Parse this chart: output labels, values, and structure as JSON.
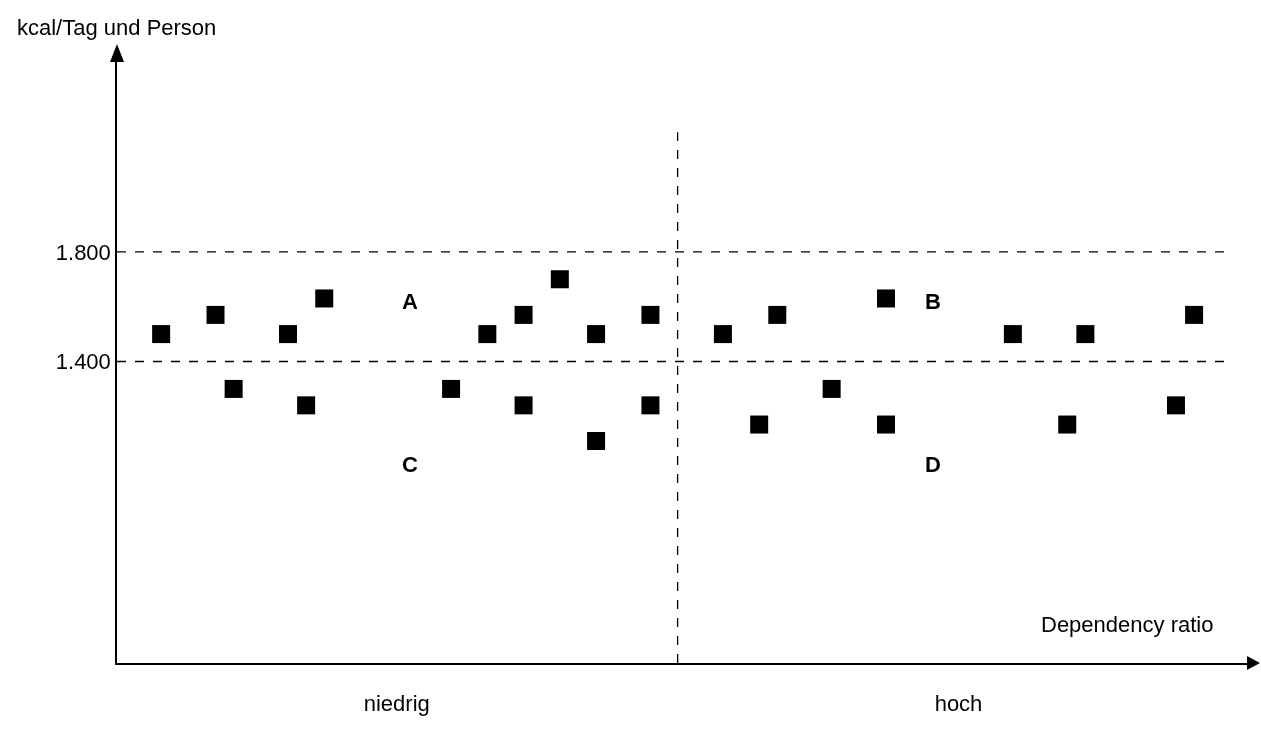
{
  "chart_data": {
    "type": "scatter",
    "xlabel": "Dependency ratio",
    "ylabel": "kcal/Tag und Person",
    "categories": [
      null,
      null,
      null,
      null,
      null,
      null,
      null,
      null,
      null,
      null,
      null,
      null,
      null,
      "niedrig",
      null,
      null,
      null,
      null,
      null,
      null,
      null,
      null,
      null,
      null,
      null,
      null,
      null,
      null,
      null,
      null,
      null,
      null,
      null,
      null,
      null,
      null,
      null,
      null,
      null,
      null,
      null,
      null,
      null,
      null,
      "hoch",
      null,
      null,
      null,
      null,
      null,
      null,
      null,
      null,
      null,
      null,
      null,
      null,
      null
    ],
    "series": [
      {
        "color": "#000000",
        "values": [
          1500,
          null,
          null,
          1570,
          1300,
          null,
          null,
          1500,
          1240,
          1630,
          null,
          null,
          null,
          null,
          null,
          null,
          1300,
          null,
          1500,
          null,
          1570,
          null,
          1700,
          null,
          1500,
          null,
          null,
          1570,
          null,
          null,
          null,
          1500,
          null,
          1170,
          1570,
          null,
          null,
          1300,
          null,
          null,
          1630,
          null,
          null,
          null,
          null,
          null,
          null,
          1500,
          null,
          null,
          1170,
          1500,
          null,
          null,
          null,
          null,
          1240,
          1570
        ]
      },
      {
        "color": "#000000",
        "values": [
          null,
          null,
          null,
          null,
          null,
          null,
          null,
          null,
          null,
          null,
          null,
          null,
          null,
          null,
          null,
          null,
          null,
          null,
          null,
          null,
          1240,
          null,
          null,
          null,
          1110,
          null,
          null,
          1240,
          null,
          null,
          null,
          null,
          null,
          null,
          null,
          null,
          null,
          null,
          null,
          null,
          1170,
          null,
          null,
          null,
          null,
          null,
          null,
          null,
          null,
          null,
          null,
          null,
          null,
          null,
          null,
          null,
          null,
          null
        ]
      }
    ],
    "marker": "square",
    "grid": false,
    "legend": false,
    "ylim": [
      300,
      2500
    ],
    "yticks": [
      {
        "value": 1400,
        "label": "1.400"
      },
      {
        "value": 1800,
        "label": "1.800"
      }
    ],
    "ref_lines": [
      {
        "axis": "y",
        "value": 1400,
        "line_style": "dashed",
        "color": "#000000"
      },
      {
        "axis": "y",
        "value": 1800,
        "line_style": "dashed",
        "color": "#000000"
      }
    ],
    "annotations": [
      "A",
      "B",
      "C",
      "D"
    ]
  }
}
